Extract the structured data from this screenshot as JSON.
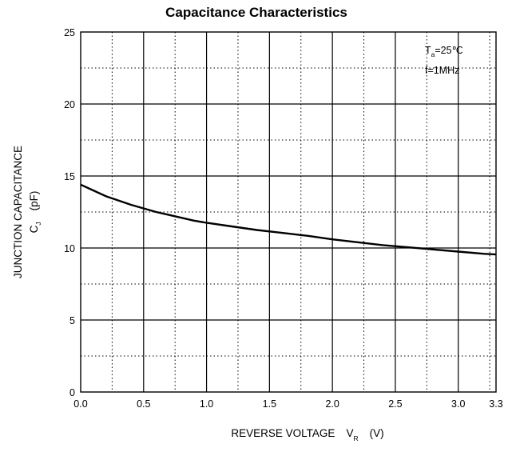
{
  "chart_data": {
    "type": "line",
    "title": "Capacitance Characteristics",
    "xlabel": "REVERSE VOLTAGE",
    "xlabel_symbol": "V",
    "xlabel_subscript": "R",
    "xlabel_unit": "(V)",
    "ylabel": "JUNCTION CAPACITANCE",
    "ylabel_symbol": "C",
    "ylabel_subscript": "J",
    "ylabel_unit": "(pF)",
    "xlim": [
      0.0,
      3.3
    ],
    "ylim": [
      0,
      25
    ],
    "x_ticks": [
      0.0,
      0.5,
      1.0,
      1.5,
      2.0,
      2.5,
      3.0,
      3.3
    ],
    "x_tick_labels": [
      "0.0",
      "0.5",
      "1.0",
      "1.5",
      "2.0",
      "2.5",
      "3.0",
      "3.3"
    ],
    "y_ticks": [
      0,
      5,
      10,
      15,
      20,
      25
    ],
    "y_tick_labels": [
      "0",
      "5",
      "10",
      "15",
      "20",
      "25"
    ],
    "grid": "on",
    "grid_minor": "dotted",
    "annotation": {
      "line1_symbol": "T",
      "line1_subscript": "a",
      "line1_value": "=25℃",
      "line2": "f=1MHz",
      "placement": "top-right"
    },
    "series": [
      {
        "x": [
          0.0,
          0.1,
          0.2,
          0.3,
          0.4,
          0.5,
          0.6,
          0.7,
          0.8,
          0.9,
          1.0,
          1.2,
          1.4,
          1.6,
          1.8,
          2.0,
          2.2,
          2.4,
          2.6,
          2.8,
          3.0,
          3.2,
          3.3
        ],
        "values": [
          14.4,
          14.0,
          13.6,
          13.3,
          13.0,
          12.75,
          12.5,
          12.3,
          12.1,
          11.9,
          11.75,
          11.5,
          11.25,
          11.05,
          10.85,
          10.6,
          10.4,
          10.2,
          10.05,
          9.9,
          9.75,
          9.6,
          9.55
        ]
      }
    ]
  }
}
